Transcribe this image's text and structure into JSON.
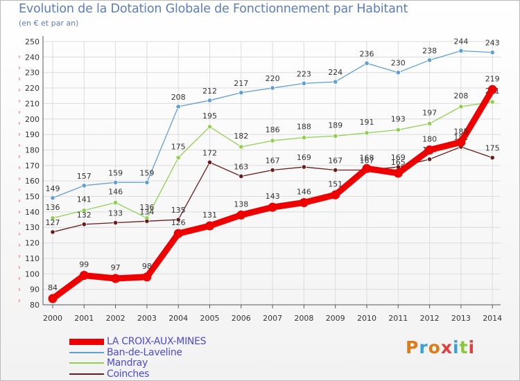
{
  "title": "Evolution de la Dotation Globale de Fonctionnement par Habitant",
  "subtitle": "(en € et par an)",
  "logo": "Proxiti",
  "chart_data": {
    "type": "line",
    "title": "Evolution de la Dotation Globale de Fonctionnement par Habitant",
    "ylabel": "(en € et par an)",
    "x": [
      2000,
      2001,
      2002,
      2003,
      2004,
      2005,
      2006,
      2007,
      2008,
      2009,
      2010,
      2011,
      2012,
      2013,
      2014
    ],
    "ylim": [
      80,
      250
    ],
    "yticks": [
      80,
      90,
      100,
      110,
      120,
      130,
      140,
      150,
      160,
      170,
      180,
      190,
      200,
      210,
      220,
      230,
      240,
      250
    ],
    "grid": true,
    "series": [
      {
        "name": "Ban-de-Laveline",
        "color": "#5f9fd8",
        "values": [
          149,
          157,
          159,
          159,
          208,
          212,
          217,
          220,
          223,
          224,
          236,
          230,
          238,
          244,
          243
        ]
      },
      {
        "name": "Mandray",
        "color": "#8fd14f",
        "values": [
          136,
          141,
          146,
          136,
          175,
          195,
          182,
          186,
          188,
          189,
          191,
          193,
          197,
          208,
          211
        ]
      },
      {
        "name": "Coinches",
        "color": "#6b1a1a",
        "values": [
          127,
          132,
          133,
          134,
          135,
          172,
          163,
          167,
          169,
          167,
          167,
          169,
          174,
          182,
          175
        ]
      },
      {
        "name": "LA CROIX-AUX-MINES",
        "color": "#ee0000",
        "values": [
          84,
          99,
          97,
          98,
          126,
          131,
          138,
          143,
          146,
          151,
          168,
          165,
          180,
          185,
          219
        ]
      }
    ]
  },
  "legend": [
    {
      "name": "LA CROIX-AUX-MINES",
      "color": "#ee0000"
    },
    {
      "name": "Ban-de-Laveline",
      "color": "#5f9fd8"
    },
    {
      "name": "Mandray",
      "color": "#8fd14f"
    },
    {
      "name": "Coinches",
      "color": "#6b1a1a"
    }
  ],
  "logo_colors": [
    "#e07b1a",
    "#3aa0d8",
    "#e07b1a",
    "#e04040",
    "#3aa0d8",
    "#8cc63f",
    "#e04040"
  ]
}
